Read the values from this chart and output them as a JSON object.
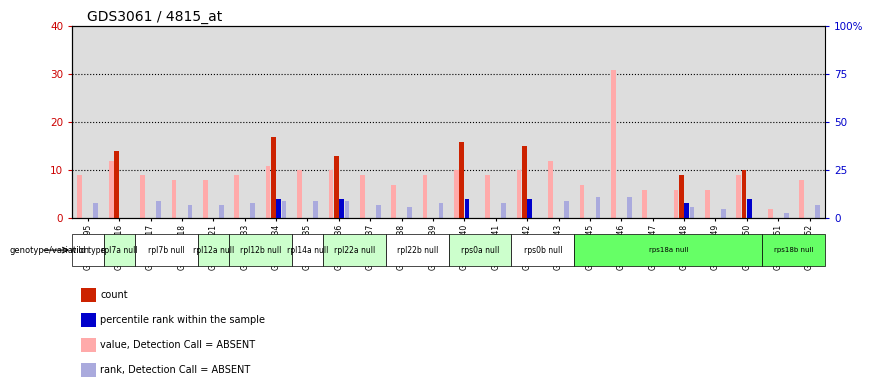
{
  "title": "GDS3061 / 4815_at",
  "samples": [
    "GSM217395",
    "GSM217616",
    "GSM217617",
    "GSM217618",
    "GSM217621",
    "GSM217633",
    "GSM217634",
    "GSM217635",
    "GSM217636",
    "GSM217637",
    "GSM217638",
    "GSM217639",
    "GSM217640",
    "GSM217641",
    "GSM217642",
    "GSM217643",
    "GSM217745",
    "GSM217746",
    "GSM217747",
    "GSM217748",
    "GSM217749",
    "GSM217750",
    "GSM217751",
    "GSM217752"
  ],
  "genotype_groups": [
    {
      "label": "wild type",
      "start": 0,
      "end": 1,
      "color": "#ffffff"
    },
    {
      "label": "rpl7a null",
      "start": 1,
      "end": 2,
      "color": "#ccffcc"
    },
    {
      "label": "rpl7b null",
      "start": 2,
      "end": 4,
      "color": "#ffffff"
    },
    {
      "label": "rpl12a null",
      "start": 4,
      "end": 5,
      "color": "#ccffcc"
    },
    {
      "label": "rpl12b null",
      "start": 5,
      "end": 7,
      "color": "#ccffcc"
    },
    {
      "label": "rpl14a null",
      "start": 7,
      "end": 8,
      "color": "#ffffff"
    },
    {
      "label": "rpl22a null",
      "start": 8,
      "end": 10,
      "color": "#ccffcc"
    },
    {
      "label": "rpl22b null",
      "start": 10,
      "end": 12,
      "color": "#ffffff"
    },
    {
      "label": "rps0a null",
      "start": 12,
      "end": 14,
      "color": "#ccffcc"
    },
    {
      "label": "rps0b null",
      "start": 14,
      "end": 16,
      "color": "#ffffff"
    },
    {
      "label": "rps18a null",
      "start": 16,
      "end": 22,
      "color": "#66ff66"
    },
    {
      "label": "rps18b null",
      "start": 22,
      "end": 24,
      "color": "#66ff66"
    }
  ],
  "count_values": [
    0,
    14,
    0,
    0,
    0,
    0,
    17,
    0,
    13,
    0,
    0,
    0,
    16,
    0,
    15,
    0,
    0,
    0,
    0,
    9,
    0,
    10,
    0,
    0
  ],
  "percentile_values": [
    0,
    0,
    0,
    0,
    0,
    0,
    10,
    0,
    10,
    0,
    0,
    0,
    10,
    0,
    10,
    0,
    0,
    0,
    0,
    8,
    0,
    10,
    0,
    0
  ],
  "value_absent": [
    9,
    12,
    9,
    8,
    8,
    9,
    11,
    10,
    10,
    9,
    7,
    9,
    10,
    9,
    10,
    12,
    7,
    31,
    6,
    6,
    6,
    9,
    2,
    8
  ],
  "rank_absent": [
    8,
    0,
    9,
    7,
    7,
    8,
    9,
    9,
    9,
    7,
    6,
    8,
    0,
    8,
    0,
    9,
    11,
    11,
    0,
    6,
    5,
    0,
    3,
    7
  ],
  "ylim_left": [
    0,
    40
  ],
  "ylim_right": [
    0,
    100
  ],
  "yticks_left": [
    0,
    10,
    20,
    30,
    40
  ],
  "yticks_right": [
    0,
    25,
    50,
    75,
    100
  ],
  "left_tick_color": "#cc0000",
  "right_tick_color": "#0000cc",
  "count_color": "#cc2200",
  "percentile_color": "#0000cc",
  "value_absent_color": "#ffaaaa",
  "rank_absent_color": "#aaaadd",
  "plot_bg_color": "#dddddd",
  "bar_width": 0.15,
  "legend_items": [
    {
      "color": "#cc2200",
      "label": "count"
    },
    {
      "color": "#0000cc",
      "label": "percentile rank within the sample"
    },
    {
      "color": "#ffaaaa",
      "label": "value, Detection Call = ABSENT"
    },
    {
      "color": "#aaaadd",
      "label": "rank, Detection Call = ABSENT"
    }
  ]
}
